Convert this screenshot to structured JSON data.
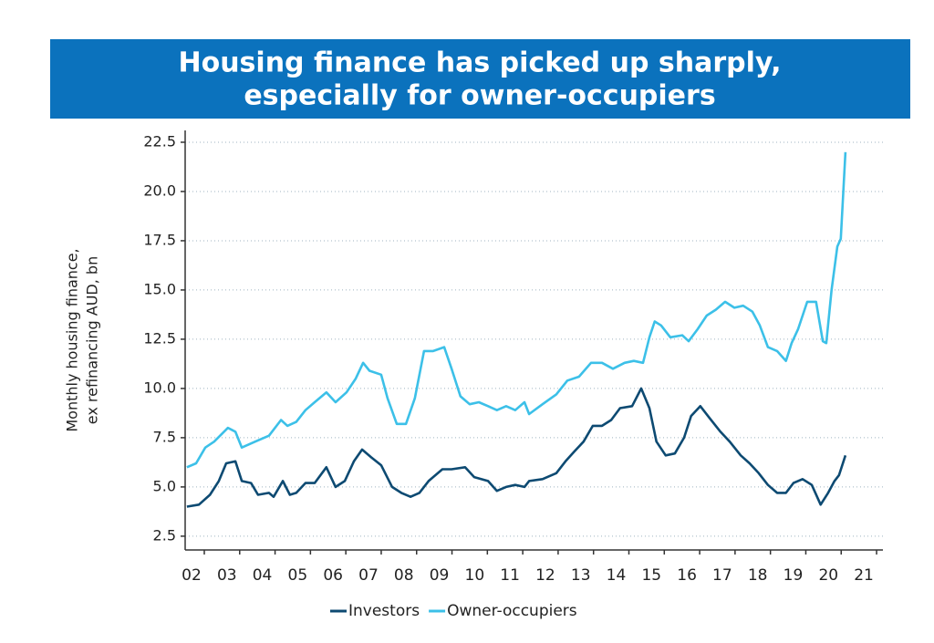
{
  "chart_data": {
    "type": "line",
    "title": [
      "Housing finance has picked up sharply,",
      "especially for owner-occupiers"
    ],
    "ylabel": [
      "Monthly housing finance,",
      "ex refinancing AUD, bn"
    ],
    "xlim": [
      2001.82,
      2021.54
    ],
    "ylim": [
      1.8,
      23.1
    ],
    "xticks": [
      {
        "value": 2002,
        "label": "02"
      },
      {
        "value": 2003,
        "label": "03"
      },
      {
        "value": 2004,
        "label": "04"
      },
      {
        "value": 2005,
        "label": "05"
      },
      {
        "value": 2006,
        "label": "06"
      },
      {
        "value": 2007,
        "label": "07"
      },
      {
        "value": 2008,
        "label": "08"
      },
      {
        "value": 2009,
        "label": "09"
      },
      {
        "value": 2010,
        "label": "10"
      },
      {
        "value": 2011,
        "label": "11"
      },
      {
        "value": 2012,
        "label": "12"
      },
      {
        "value": 2013,
        "label": "13"
      },
      {
        "value": 2014,
        "label": "14"
      },
      {
        "value": 2015,
        "label": "15"
      },
      {
        "value": 2016,
        "label": "16"
      },
      {
        "value": 2017,
        "label": "17"
      },
      {
        "value": 2018,
        "label": "18"
      },
      {
        "value": 2019,
        "label": "19"
      },
      {
        "value": 2020,
        "label": "20"
      },
      {
        "value": 2021,
        "label": "21"
      }
    ],
    "yticks": [
      2.5,
      {
        "value": 5,
        "label": "5.0"
      },
      7.5,
      {
        "value": 10,
        "label": "10.0"
      },
      12.5,
      {
        "value": 15,
        "label": "15.0"
      },
      17.5,
      {
        "value": 20,
        "label": "20.0"
      },
      22.5
    ],
    "grid": true,
    "legend": "bottom",
    "series": [
      {
        "name": "Investors",
        "color": "#0d4a72",
        "x": [
          2001.87,
          2002.21,
          2002.52,
          2002.77,
          2002.98,
          2003.24,
          2003.42,
          2003.68,
          2003.88,
          2004.19,
          2004.32,
          2004.58,
          2004.78,
          2004.96,
          2005.22,
          2005.48,
          2005.81,
          2006.07,
          2006.33,
          2006.59,
          2006.82,
          2007.08,
          2007.36,
          2007.67,
          2007.93,
          2008.19,
          2008.44,
          2008.7,
          2009.09,
          2009.35,
          2009.73,
          2009.99,
          2010.38,
          2010.63,
          2010.89,
          2011.15,
          2011.41,
          2011.54,
          2011.92,
          2012.31,
          2012.57,
          2012.82,
          2013.08,
          2013.34,
          2013.6,
          2013.86,
          2014.11,
          2014.45,
          2014.71,
          2014.94,
          2015.14,
          2015.4,
          2015.66,
          2015.92,
          2016.12,
          2016.38,
          2016.64,
          2016.95,
          2017.21,
          2017.52,
          2017.77,
          2018.03,
          2018.29,
          2018.55,
          2018.8,
          2019.01,
          2019.27,
          2019.53,
          2019.78,
          2019.99,
          2020.17,
          2020.3,
          2020.48
        ],
        "values": [
          4.0,
          4.1,
          4.6,
          5.3,
          6.2,
          6.3,
          5.3,
          5.2,
          4.6,
          4.7,
          4.5,
          5.3,
          4.6,
          4.7,
          5.2,
          5.2,
          6.0,
          5.0,
          5.3,
          6.3,
          6.9,
          6.5,
          6.1,
          5.0,
          4.7,
          4.5,
          4.7,
          5.3,
          5.9,
          5.9,
          6.0,
          5.5,
          5.3,
          4.8,
          5.0,
          5.1,
          5.0,
          5.3,
          5.4,
          5.7,
          6.3,
          6.8,
          7.3,
          8.1,
          8.1,
          8.4,
          9.0,
          9.1,
          10.0,
          9.0,
          7.3,
          6.6,
          6.7,
          7.5,
          8.6,
          9.1,
          8.5,
          7.8,
          7.3,
          6.6,
          6.2,
          5.7,
          5.1,
          4.7,
          4.7,
          5.2,
          5.4,
          5.1,
          4.1,
          4.7,
          5.3,
          5.6,
          6.6
        ]
      },
      {
        "name": "Owner-occupiers",
        "color": "#3cc0e8",
        "x": [
          2001.87,
          2002.13,
          2002.39,
          2002.64,
          2003.03,
          2003.24,
          2003.42,
          2003.8,
          2004.19,
          2004.53,
          2004.71,
          2004.96,
          2005.22,
          2005.48,
          2005.81,
          2006.07,
          2006.38,
          2006.64,
          2006.85,
          2007.03,
          2007.36,
          2007.54,
          2007.8,
          2008.06,
          2008.31,
          2008.57,
          2008.83,
          2009.14,
          2009.35,
          2009.6,
          2009.86,
          2010.12,
          2010.38,
          2010.63,
          2010.89,
          2011.15,
          2011.41,
          2011.54,
          2011.92,
          2012.31,
          2012.62,
          2012.95,
          2013.29,
          2013.6,
          2013.91,
          2014.24,
          2014.5,
          2014.76,
          2014.94,
          2015.09,
          2015.27,
          2015.53,
          2015.87,
          2016.05,
          2016.3,
          2016.56,
          2016.82,
          2017.08,
          2017.34,
          2017.59,
          2017.85,
          2018.06,
          2018.29,
          2018.55,
          2018.8,
          2018.96,
          2019.14,
          2019.4,
          2019.65,
          2019.84,
          2019.94,
          2020.09,
          2020.25,
          2020.35,
          2020.48
        ],
        "values": [
          6.0,
          6.2,
          7.0,
          7.3,
          8.0,
          7.8,
          7.0,
          7.3,
          7.6,
          8.4,
          8.1,
          8.3,
          8.9,
          9.3,
          9.8,
          9.3,
          9.8,
          10.5,
          11.3,
          10.9,
          10.7,
          9.5,
          8.2,
          8.2,
          9.5,
          11.9,
          11.9,
          12.1,
          11.0,
          9.6,
          9.2,
          9.3,
          9.1,
          8.9,
          9.1,
          8.9,
          9.3,
          8.7,
          9.2,
          9.7,
          10.4,
          10.6,
          11.3,
          11.3,
          11.0,
          11.3,
          11.4,
          11.3,
          12.6,
          13.4,
          13.2,
          12.6,
          12.7,
          12.4,
          13.0,
          13.7,
          14.0,
          14.4,
          14.1,
          14.2,
          13.9,
          13.2,
          12.1,
          11.9,
          11.4,
          12.3,
          13.0,
          14.4,
          14.4,
          12.4,
          12.3,
          15.0,
          17.2,
          17.6,
          22.0
        ]
      }
    ]
  }
}
